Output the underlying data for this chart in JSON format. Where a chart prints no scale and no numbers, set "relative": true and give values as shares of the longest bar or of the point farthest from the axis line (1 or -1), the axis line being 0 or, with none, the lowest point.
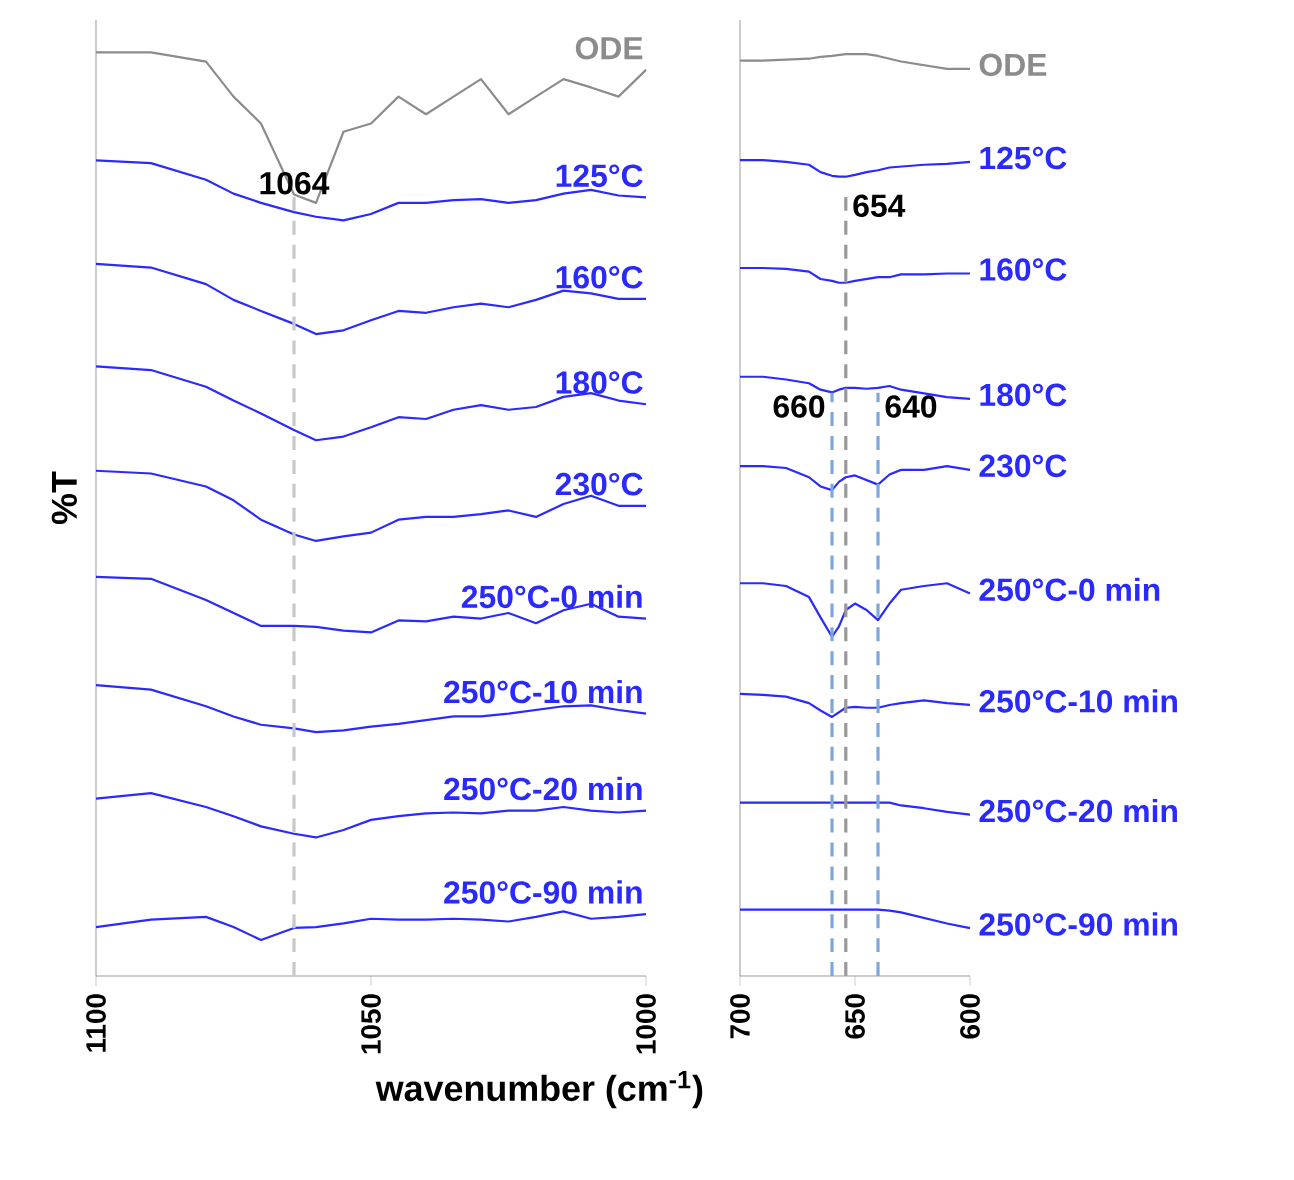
{
  "chart_data": [
    {
      "type": "line",
      "relative": true,
      "xlabel": "wavenumber (cm$^{-1}$)",
      "ylabel": "%T",
      "xlim": [
        1100,
        1000
      ],
      "xticks": [
        1100,
        1050,
        1000
      ],
      "x": [
        1100,
        1090,
        1080,
        1075,
        1070,
        1064,
        1060,
        1055,
        1050,
        1045,
        1040,
        1035,
        1030,
        1025,
        1020,
        1015,
        1010,
        1005,
        1000
      ],
      "ref_lines": [
        {
          "axis": "x",
          "value": 1064,
          "label": "1064",
          "color": "#c8c8c8",
          "line_style": "dashed"
        }
      ],
      "series": [
        {
          "name": "ODE",
          "color": "#8c8c8c",
          "values": [
            1.0,
            1.0,
            0.99,
            0.952,
            0.923,
            0.846,
            0.837,
            0.914,
            0.923,
            0.952,
            0.933,
            0.952,
            0.971,
            0.933,
            0.952,
            0.971,
            0.962,
            0.952,
            0.981
          ]
        },
        {
          "name": "125°C",
          "color": "#2a2aff",
          "values": [
            0.883,
            0.88,
            0.862,
            0.847,
            0.837,
            0.827,
            0.822,
            0.818,
            0.825,
            0.837,
            0.837,
            0.84,
            0.841,
            0.837,
            0.84,
            0.847,
            0.851,
            0.845,
            0.843
          ]
        },
        {
          "name": "160°C",
          "color": "#2a2aff",
          "values": [
            0.771,
            0.767,
            0.749,
            0.732,
            0.72,
            0.706,
            0.695,
            0.699,
            0.71,
            0.72,
            0.718,
            0.724,
            0.728,
            0.724,
            0.732,
            0.742,
            0.739,
            0.733,
            0.733
          ]
        },
        {
          "name": "180°C",
          "color": "#2a2aff",
          "values": [
            0.66,
            0.656,
            0.638,
            0.623,
            0.609,
            0.591,
            0.58,
            0.584,
            0.594,
            0.605,
            0.603,
            0.613,
            0.618,
            0.613,
            0.616,
            0.627,
            0.631,
            0.623,
            0.619
          ]
        },
        {
          "name": "230°C",
          "color": "#2a2aff",
          "values": [
            0.547,
            0.544,
            0.53,
            0.515,
            0.494,
            0.478,
            0.471,
            0.476,
            0.48,
            0.494,
            0.497,
            0.497,
            0.5,
            0.504,
            0.497,
            0.511,
            0.52,
            0.509,
            0.509
          ]
        },
        {
          "name": "250°C-0 min",
          "color": "#2a2aff",
          "values": [
            0.432,
            0.43,
            0.407,
            0.393,
            0.379,
            0.379,
            0.378,
            0.374,
            0.372,
            0.385,
            0.384,
            0.389,
            0.387,
            0.393,
            0.382,
            0.396,
            0.403,
            0.389,
            0.387
          ]
        },
        {
          "name": "250°C-10 min",
          "color": "#2a2aff",
          "values": [
            0.315,
            0.31,
            0.292,
            0.281,
            0.272,
            0.268,
            0.264,
            0.266,
            0.27,
            0.273,
            0.277,
            0.281,
            0.281,
            0.284,
            0.288,
            0.292,
            0.293,
            0.288,
            0.284
          ]
        },
        {
          "name": "250°C-20 min",
          "color": "#2a2aff",
          "values": [
            0.192,
            0.198,
            0.183,
            0.173,
            0.162,
            0.154,
            0.15,
            0.158,
            0.169,
            0.173,
            0.176,
            0.177,
            0.176,
            0.179,
            0.179,
            0.183,
            0.179,
            0.177,
            0.179
          ]
        },
        {
          "name": "250°C-90 min",
          "color": "#2a2aff",
          "values": [
            0.053,
            0.061,
            0.064,
            0.053,
            0.039,
            0.052,
            0.053,
            0.057,
            0.062,
            0.061,
            0.061,
            0.062,
            0.061,
            0.059,
            0.064,
            0.07,
            0.062,
            0.064,
            0.067
          ]
        }
      ]
    },
    {
      "type": "line",
      "relative": true,
      "xlim": [
        700,
        600
      ],
      "xticks": [
        700,
        650,
        600
      ],
      "x": [
        700,
        690,
        680,
        670,
        665,
        660,
        657,
        654,
        650,
        645,
        640,
        635,
        630,
        620,
        610,
        600
      ],
      "ref_lines": [
        {
          "axis": "x",
          "value": 654,
          "label": "654",
          "color": "#999999",
          "line_style": "dashed"
        },
        {
          "axis": "x",
          "value": 660,
          "label": "660",
          "color": "#7fa6d9",
          "line_style": "dashed"
        },
        {
          "axis": "x",
          "value": 640,
          "label": "640",
          "color": "#7fa6d9",
          "line_style": "dashed"
        }
      ],
      "series": [
        {
          "name": "ODE",
          "color": "#8c8c8c",
          "values": [
            0.993,
            0.993,
            0.994,
            0.995,
            0.997,
            0.998,
            0.999,
            1.0,
            1.0,
            1.0,
            0.998,
            0.995,
            0.992,
            0.988,
            0.984,
            0.984
          ]
        },
        {
          "name": "125°C",
          "color": "#2a2aff",
          "values": [
            0.885,
            0.885,
            0.883,
            0.88,
            0.872,
            0.868,
            0.867,
            0.867,
            0.869,
            0.872,
            0.874,
            0.877,
            0.878,
            0.88,
            0.881,
            0.883
          ]
        },
        {
          "name": "160°C",
          "color": "#2a2aff",
          "values": [
            0.768,
            0.768,
            0.767,
            0.764,
            0.756,
            0.754,
            0.752,
            0.752,
            0.754,
            0.756,
            0.758,
            0.758,
            0.761,
            0.761,
            0.762,
            0.762
          ]
        },
        {
          "name": "180°C",
          "color": "#2a2aff",
          "values": [
            0.65,
            0.65,
            0.647,
            0.643,
            0.636,
            0.633,
            0.636,
            0.638,
            0.638,
            0.637,
            0.638,
            0.64,
            0.636,
            0.632,
            0.628,
            0.626
          ]
        },
        {
          "name": "230°C",
          "color": "#2a2aff",
          "values": [
            0.553,
            0.553,
            0.551,
            0.541,
            0.531,
            0.527,
            0.536,
            0.541,
            0.543,
            0.538,
            0.533,
            0.544,
            0.549,
            0.549,
            0.553,
            0.549
          ]
        },
        {
          "name": "250°C-0 min",
          "color": "#2a2aff",
          "values": [
            0.426,
            0.426,
            0.423,
            0.411,
            0.389,
            0.368,
            0.379,
            0.397,
            0.404,
            0.397,
            0.386,
            0.404,
            0.419,
            0.423,
            0.426,
            0.415
          ]
        },
        {
          "name": "250°C-10 min",
          "color": "#2a2aff",
          "values": [
            0.306,
            0.305,
            0.303,
            0.296,
            0.288,
            0.281,
            0.286,
            0.291,
            0.292,
            0.291,
            0.291,
            0.294,
            0.296,
            0.299,
            0.296,
            0.294
          ]
        },
        {
          "name": "250°C-20 min",
          "color": "#2a2aff",
          "values": [
            0.188,
            0.188,
            0.188,
            0.188,
            0.188,
            0.188,
            0.188,
            0.188,
            0.188,
            0.188,
            0.188,
            0.188,
            0.185,
            0.182,
            0.178,
            0.175
          ]
        },
        {
          "name": "250°C-90 min",
          "color": "#2a2aff",
          "values": [
            0.072,
            0.072,
            0.072,
            0.072,
            0.072,
            0.072,
            0.072,
            0.072,
            0.072,
            0.072,
            0.072,
            0.071,
            0.069,
            0.063,
            0.057,
            0.052
          ]
        }
      ]
    }
  ]
}
